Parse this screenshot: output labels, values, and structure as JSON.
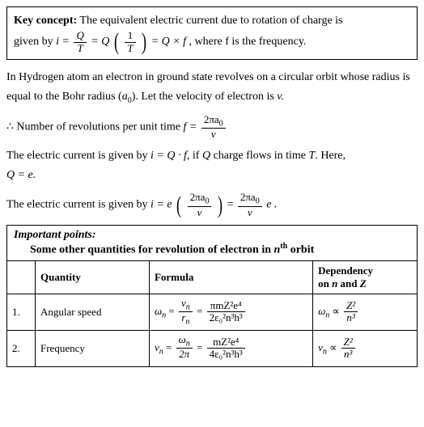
{
  "keyConcept": {
    "label": "Key concept:",
    "text1": "The equivalent electric current due to rotation of charge is",
    "text2": "given by ",
    "eq": {
      "lhs": "i =",
      "f1_num": "Q",
      "f1_den": "T",
      "equals1": " = Q",
      "f2_num": "1",
      "f2_den": "T",
      "equals2": " = Q × f",
      "tail": ", where f is the frequency."
    }
  },
  "body": {
    "p1a": "In Hydrogen atom an electron in ground state revolves on a circular orbit whose radius is equal to the Bohr radius (",
    "p1a_sym": "a",
    "p1a_sub": "0",
    "p1b": "). Let the velocity of electron is ",
    "p1b_sym": "v.",
    "p2a": "∴ Number of revolutions per unit time ",
    "p2_f": " f =",
    "p2_num": "2πa",
    "p2_num_sub": "0",
    "p2_den": "v",
    "p3a": "The electric current is given by ",
    "p3_eq": "i = Q · f",
    "p3b": ", if ",
    "p3_Q": "Q",
    "p3c": " charge flows in time ",
    "p3_T": "T",
    "p3d": ". Here,",
    "p4": "Q = e.",
    "p5a": "The electric current is given by ",
    "p5_lhs": "i = e",
    "p5_f1_num": "2πa",
    "p5_f1_num_sub": "0",
    "p5_f1_den": "v",
    "p5_mid": " = ",
    "p5_f2_num": "2πa",
    "p5_f2_num_sub": "0",
    "p5_f2_den": "v",
    "p5_tail": " e ."
  },
  "important": {
    "hdr1": "Important points:",
    "hdr2_a": "Some other quantities for revolution of electron in ",
    "hdr2_b": "n",
    "hdr2_c": "th",
    "hdr2_d": " orbit"
  },
  "table": {
    "headers": {
      "c1": "",
      "c2": "Quantity",
      "c3": "Formula",
      "c4": "Dependency on n and Z"
    },
    "rows": [
      {
        "num": "1.",
        "quantity": "Angular speed",
        "formula": {
          "lhs_sym": "ω",
          "lhs_sub": "n",
          "eq": " = ",
          "f1_num_sym": "v",
          "f1_num_sub": "n",
          "f1_den_sym": "r",
          "f1_den_sub": "n",
          "mid": " = ",
          "f2_num": "πmZ²e⁴",
          "f2_den": "2ε₀²n³h³"
        },
        "dep": {
          "lhs_sym": "ω",
          "lhs_sub": "n",
          "prop": " ∝ ",
          "num": "Z²",
          "den": "n³"
        }
      },
      {
        "num": "2.",
        "quantity": "Frequency",
        "formula": {
          "lhs_sym": "v",
          "lhs_sub": "n",
          "eq": " = ",
          "f1_num_sym": "ω",
          "f1_num_sub": "n",
          "f1_den_sym": "2π",
          "f1_den_sub": "",
          "mid": " = ",
          "f2_num": "mZ²e⁴",
          "f2_den": "4ε₀²n³h³"
        },
        "dep": {
          "lhs_sym": "v",
          "lhs_sub": "n",
          "prop": " ∝ ",
          "num": "Z²",
          "den": "n³"
        }
      }
    ]
  },
  "style": {
    "font_family": "Times New Roman",
    "body_fontsize_pt": 11,
    "background": "#ffffff",
    "text_color": "#000000",
    "border_color": "#000000"
  }
}
